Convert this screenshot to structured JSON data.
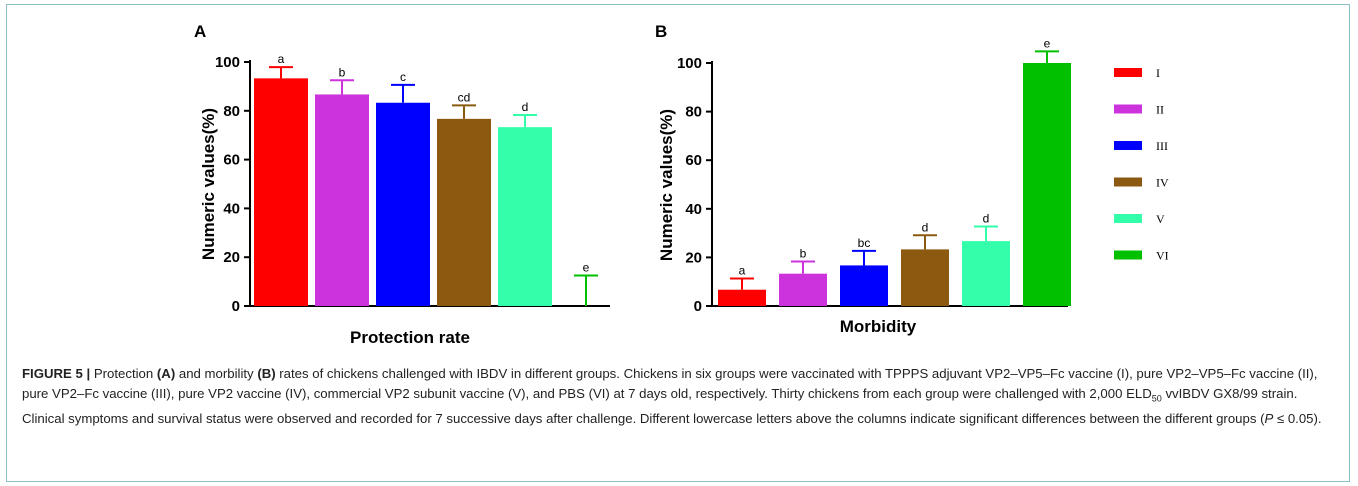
{
  "chart_data": [
    {
      "panel": "A",
      "type": "bar",
      "xlabel": "Protection rate",
      "ylabel": "Numeric values(%)",
      "ylim": [
        0,
        100
      ],
      "yticks": [
        0,
        20,
        40,
        60,
        80,
        100
      ],
      "categories": [
        "I",
        "II",
        "III",
        "IV",
        "V",
        "VI"
      ],
      "values": [
        93.3,
        86.7,
        83.3,
        76.7,
        73.3,
        0
      ],
      "errors": [
        4.6,
        5.8,
        7.3,
        5.5,
        5.0,
        12.5
      ],
      "significance": [
        "a",
        "b",
        "c",
        "cd",
        "d",
        "e"
      ],
      "colors": [
        "#ff0000",
        "#cc33dd",
        "#0000ff",
        "#8b5a10",
        "#33ffaa",
        "#00c000"
      ]
    },
    {
      "panel": "B",
      "type": "bar",
      "xlabel": "Morbidity",
      "ylabel": "Numeric values(%)",
      "ylim": [
        0,
        100
      ],
      "yticks": [
        0,
        20,
        40,
        60,
        80,
        100
      ],
      "categories": [
        "I",
        "II",
        "III",
        "IV",
        "V",
        "VI"
      ],
      "values": [
        6.7,
        13.3,
        16.7,
        23.3,
        26.7,
        100
      ],
      "errors": [
        4.6,
        5.0,
        6.0,
        5.8,
        6.0,
        4.8
      ],
      "significance": [
        "a",
        "b",
        "bc",
        "d",
        "d",
        "e"
      ],
      "colors": [
        "#ff0000",
        "#cc33dd",
        "#0000ff",
        "#8b5a10",
        "#33ffaa",
        "#00c000"
      ]
    }
  ],
  "legend": [
    {
      "label": "I",
      "color": "#ff0000"
    },
    {
      "label": "II",
      "color": "#cc33dd"
    },
    {
      "label": "III",
      "color": "#0000ff"
    },
    {
      "label": "IV",
      "color": "#8b5a10"
    },
    {
      "label": "V",
      "color": "#33ffaa"
    },
    {
      "label": "VI",
      "color": "#00c000"
    }
  ],
  "caption": {
    "figure_label": "FIGURE 5 |",
    "t1": " Protection ",
    "b1": "(A)",
    "t2": " and morbility ",
    "b2": "(B)",
    "t3": " rates of chickens challenged with IBDV in different groups. Chickens in six groups were vaccinated with TPPPS adjuvant VP2–VP5–Fc vaccine (I), pure VP2–VP5–Fc vaccine (II), pure VP2–Fc vaccine (III), pure VP2 vaccine (IV), commercial VP2 subunit vaccine (V), and PBS (VI) at 7 days old, respectively. Thirty chickens from each group were challenged with 2,000 ELD",
    "sub": "50",
    "t4": " vvIBDV GX8/99 strain. Clinical symptoms and survival status were observed and recorded for 7 successive days after challenge. Different lowercase letters above the columns indicate significant differences between the different groups (",
    "p_italic": "P",
    "t5": " ≤ 0.05)."
  }
}
